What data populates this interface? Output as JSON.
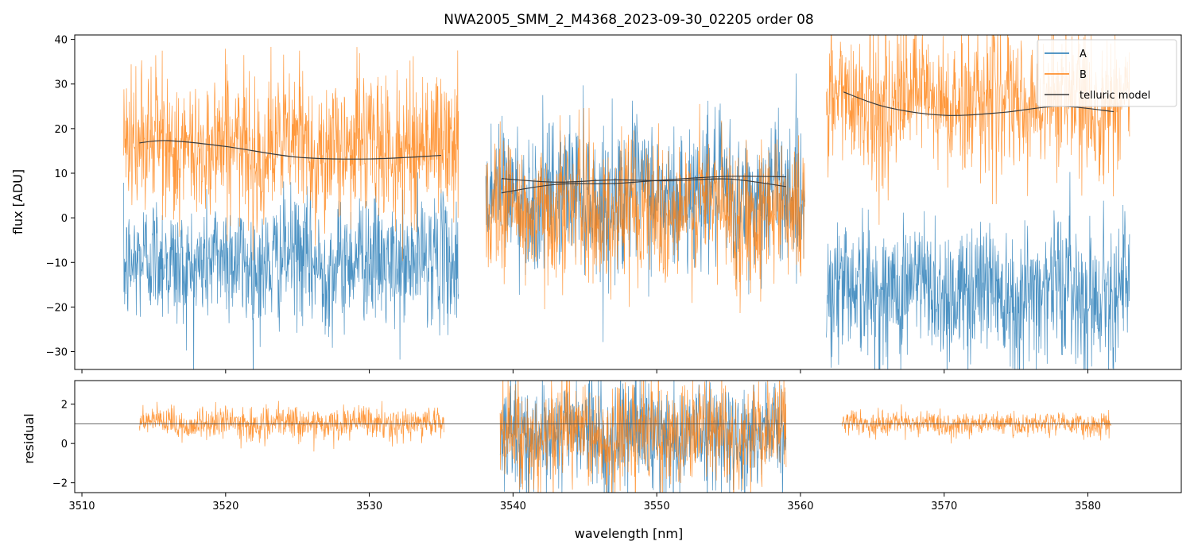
{
  "chart_data": {
    "type": "line",
    "title": "NWA2005_SMM_2_M4368_2023-09-30_02205  order 08",
    "xlabel": "wavelength [nm]",
    "xlim": [
      3509.5,
      3586.5
    ],
    "xticks": [
      3510,
      3520,
      3530,
      3540,
      3550,
      3560,
      3570,
      3580
    ],
    "colors": {
      "A": "#1f77b4",
      "B": "#ff7f0e",
      "model": "#3a3a3a"
    },
    "top_panel": {
      "ylabel": "flux [ADU]",
      "ylim": [
        -34,
        41
      ],
      "yticks": [
        -30,
        -20,
        -10,
        0,
        10,
        20,
        30,
        40
      ],
      "legend": {
        "position": "top-right",
        "entries": [
          {
            "label": "A",
            "color": "#1f77b4"
          },
          {
            "label": "B",
            "color": "#ff7f0e"
          },
          {
            "label": "telluric model",
            "color": "#3a3a3a"
          }
        ]
      },
      "segments": [
        {
          "x_range": [
            3512.9,
            3536.2
          ],
          "A_mean": -10,
          "A_noise": 7,
          "B_mean": 16,
          "B_noise": 8
        },
        {
          "x_range": [
            3538.1,
            3560.3
          ],
          "A_mean": 5,
          "A_noise": 8,
          "B_mean": 2,
          "B_noise": 8
        },
        {
          "x_range": [
            3561.8,
            3582.9
          ],
          "A_mean": -16,
          "A_noise": 8,
          "B_mean": 26,
          "B_noise": 8
        }
      ],
      "telluric_model": [
        {
          "series": "B",
          "x": [
            3514.0,
            3516.0,
            3520.0,
            3525.0,
            3530.0,
            3535.0
          ],
          "y": [
            16.8,
            17.3,
            16.0,
            13.6,
            13.2,
            14.0
          ]
        },
        {
          "series": "A",
          "x": [
            3539.2,
            3543.0,
            3547.0,
            3551.0,
            3555.0,
            3559.0
          ],
          "y": [
            5.6,
            7.5,
            7.7,
            8.6,
            9.3,
            9.2
          ]
        },
        {
          "series": "B",
          "x": [
            3539.2,
            3543.0,
            3547.0,
            3551.0,
            3555.0,
            3559.0
          ],
          "y": [
            8.8,
            8.0,
            8.5,
            8.3,
            8.7,
            7.0
          ]
        },
        {
          "series": "B",
          "x": [
            3563.0,
            3566.0,
            3570.0,
            3574.0,
            3578.0,
            3581.8
          ],
          "y": [
            28.2,
            24.8,
            23.0,
            23.6,
            25.0,
            23.8
          ]
        }
      ]
    },
    "bottom_panel": {
      "ylabel": "residual",
      "ylim": [
        -2.5,
        3.2
      ],
      "yticks": [
        -2,
        0,
        2
      ],
      "hline": 1,
      "segments": [
        {
          "x_range": [
            3514.0,
            3535.2
          ],
          "series": [
            "B"
          ],
          "mean": 1.0,
          "noise": 0.4
        },
        {
          "x_range": [
            3539.1,
            3559.0
          ],
          "series": [
            "A",
            "B"
          ],
          "mean": 0.5,
          "noise": 1.3
        },
        {
          "x_range": [
            3562.9,
            3581.6
          ],
          "series": [
            "B"
          ],
          "mean": 1.0,
          "noise": 0.3
        }
      ]
    }
  }
}
